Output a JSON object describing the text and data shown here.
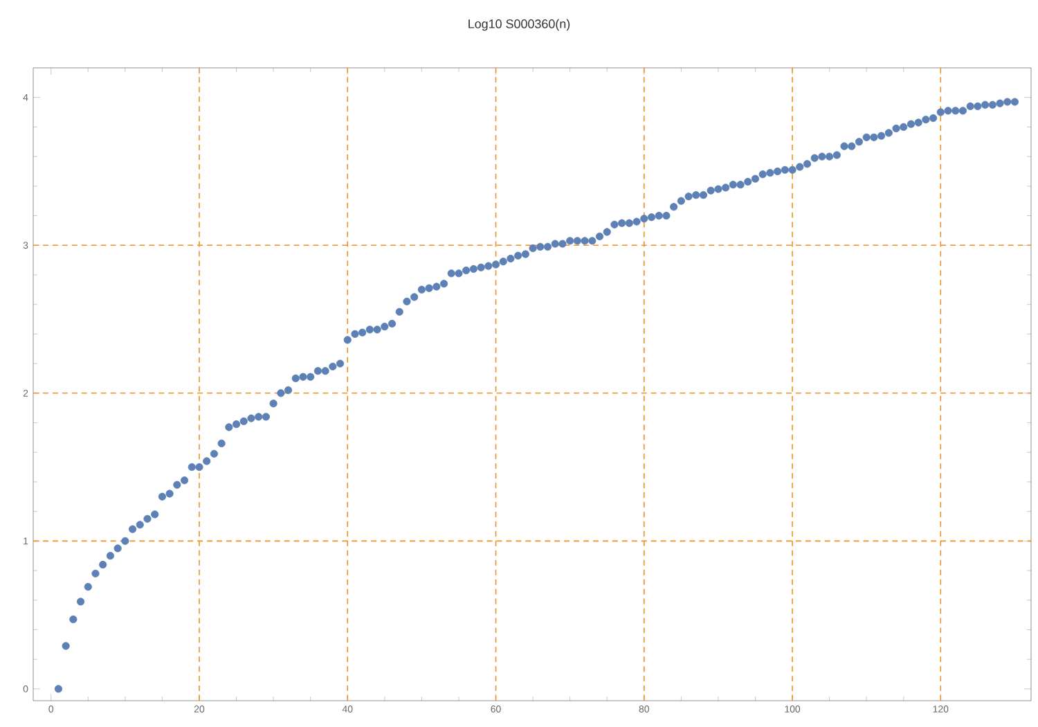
{
  "chart_data": {
    "type": "scatter",
    "title": "Log10 S000360(n)",
    "x": [
      1,
      2,
      3,
      4,
      5,
      6,
      7,
      8,
      9,
      10,
      11,
      12,
      13,
      14,
      15,
      16,
      17,
      18,
      19,
      20,
      21,
      22,
      23,
      24,
      25,
      26,
      27,
      28,
      29,
      30,
      31,
      32,
      33,
      34,
      35,
      36,
      37,
      38,
      39,
      40,
      41,
      42,
      43,
      44,
      45,
      46,
      47,
      48,
      49,
      50,
      51,
      52,
      53,
      54,
      55,
      56,
      57,
      58,
      59,
      60,
      61,
      62,
      63,
      64,
      65,
      66,
      67,
      68,
      69,
      70,
      71,
      72,
      73,
      74,
      75,
      76,
      77,
      78,
      79,
      80,
      81,
      82,
      83,
      84,
      85,
      86,
      87,
      88,
      89,
      90,
      91,
      92,
      93,
      94,
      95,
      96,
      97,
      98,
      99,
      100,
      101,
      102,
      103,
      104,
      105,
      106,
      107,
      108,
      109,
      110,
      111,
      112,
      113,
      114,
      115,
      116,
      117,
      118,
      119,
      120,
      121,
      122,
      123,
      124,
      125,
      126,
      127,
      128,
      129,
      130
    ],
    "values": [
      0.0,
      0.29,
      0.47,
      0.59,
      0.69,
      0.78,
      0.84,
      0.9,
      0.95,
      1.0,
      1.08,
      1.11,
      1.15,
      1.18,
      1.3,
      1.32,
      1.38,
      1.41,
      1.5,
      1.5,
      1.54,
      1.59,
      1.66,
      1.77,
      1.79,
      1.81,
      1.83,
      1.84,
      1.84,
      1.93,
      2.0,
      2.02,
      2.1,
      2.11,
      2.11,
      2.15,
      2.15,
      2.18,
      2.2,
      2.36,
      2.4,
      2.41,
      2.43,
      2.43,
      2.45,
      2.47,
      2.55,
      2.62,
      2.65,
      2.7,
      2.71,
      2.72,
      2.74,
      2.81,
      2.81,
      2.83,
      2.84,
      2.85,
      2.86,
      2.87,
      2.89,
      2.91,
      2.93,
      2.94,
      2.98,
      2.99,
      2.99,
      3.01,
      3.01,
      3.03,
      3.03,
      3.03,
      3.03,
      3.06,
      3.09,
      3.14,
      3.15,
      3.15,
      3.16,
      3.18,
      3.19,
      3.2,
      3.2,
      3.26,
      3.3,
      3.33,
      3.34,
      3.34,
      3.37,
      3.38,
      3.39,
      3.41,
      3.41,
      3.43,
      3.45,
      3.48,
      3.49,
      3.5,
      3.51,
      3.51,
      3.53,
      3.55,
      3.59,
      3.6,
      3.6,
      3.61,
      3.67,
      3.67,
      3.7,
      3.73,
      3.73,
      3.74,
      3.76,
      3.79,
      3.8,
      3.82,
      3.83,
      3.85,
      3.86,
      3.9,
      3.91,
      3.91,
      3.91,
      3.94,
      3.94,
      3.95,
      3.95,
      3.96,
      3.97,
      3.97
    ],
    "color": "#5e81b5",
    "marker": "circle",
    "xlim": [
      -2.4,
      132.2
    ],
    "ylim": [
      -0.08,
      4.2
    ],
    "xticks": [
      0,
      20,
      40,
      60,
      80,
      100,
      120
    ],
    "yticks": [
      0,
      1,
      2,
      3,
      4
    ],
    "ref_lines": [
      {
        "axis": "x",
        "value": 20,
        "color": "#f0901e",
        "line_style": "dashed"
      },
      {
        "axis": "x",
        "value": 40,
        "color": "#f0901e",
        "line_style": "dashed"
      },
      {
        "axis": "x",
        "value": 60,
        "color": "#f0901e",
        "line_style": "dashed"
      },
      {
        "axis": "x",
        "value": 80,
        "color": "#f0901e",
        "line_style": "dashed"
      },
      {
        "axis": "x",
        "value": 100,
        "color": "#f0901e",
        "line_style": "dashed"
      },
      {
        "axis": "x",
        "value": 120,
        "color": "#f0901e",
        "line_style": "dashed"
      },
      {
        "axis": "y",
        "value": 1,
        "color": "#f0901e",
        "line_style": "dashed"
      },
      {
        "axis": "y",
        "value": 2,
        "color": "#f0901e",
        "line_style": "dashed"
      },
      {
        "axis": "y",
        "value": 3,
        "color": "#f0901e",
        "line_style": "dashed"
      }
    ]
  }
}
